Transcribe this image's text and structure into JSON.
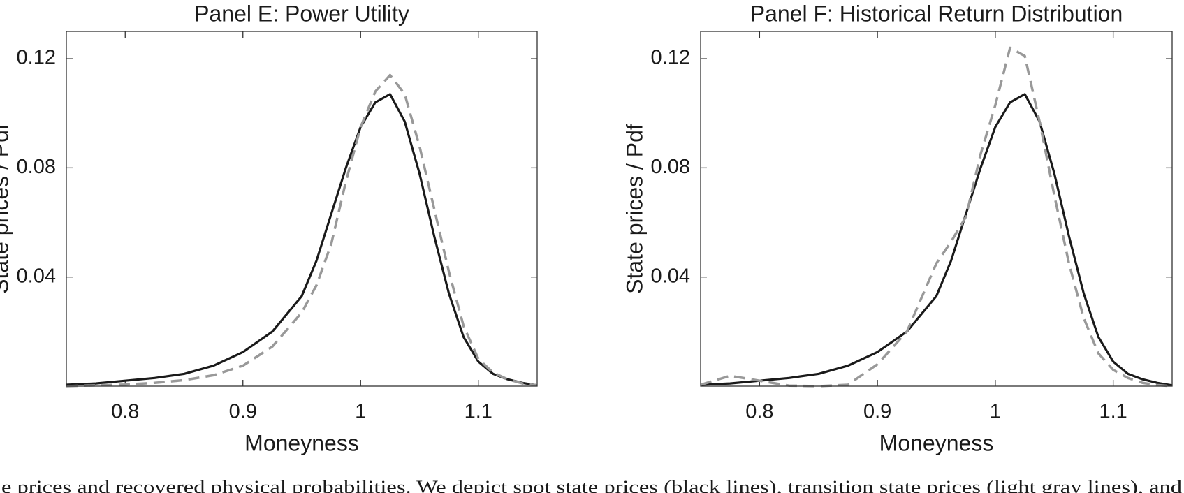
{
  "chart_data": [
    {
      "type": "line",
      "title": "Panel E: Power Utility",
      "xlabel": "Moneyness",
      "ylabel": "State prices / Pdf",
      "x": [
        0.75,
        0.775,
        0.8,
        0.825,
        0.85,
        0.875,
        0.9,
        0.925,
        0.95,
        0.9625,
        0.975,
        0.9875,
        1.0,
        1.0125,
        1.025,
        1.0375,
        1.05,
        1.0625,
        1.075,
        1.0875,
        1.1,
        1.1125,
        1.125,
        1.1375,
        1.15
      ],
      "series": [
        {
          "color": "#1a1a1a",
          "style": "solid",
          "values": [
            0.0005,
            0.001,
            0.002,
            0.003,
            0.0045,
            0.0075,
            0.0125,
            0.02,
            0.033,
            0.046,
            0.063,
            0.08,
            0.095,
            0.104,
            0.107,
            0.097,
            0.078,
            0.055,
            0.034,
            0.018,
            0.009,
            0.0045,
            0.0025,
            0.0012,
            0.0003
          ]
        },
        {
          "color": "#999999",
          "style": "dashed",
          "values": [
            0,
            0.0003,
            0.0006,
            0.0012,
            0.0022,
            0.004,
            0.0075,
            0.0145,
            0.027,
            0.037,
            0.052,
            0.075,
            0.095,
            0.108,
            0.114,
            0.107,
            0.088,
            0.065,
            0.042,
            0.022,
            0.01,
            0.005,
            0.0025,
            0.001,
            0.0003
          ]
        }
      ],
      "xlim": [
        0.75,
        1.15
      ],
      "xticks": [
        0.8,
        0.9,
        1,
        1.1
      ],
      "ylim": [
        0,
        0.13
      ],
      "yticks": [
        0.04,
        0.08,
        0.12
      ],
      "grid": false
    },
    {
      "type": "line",
      "title": "Panel F: Historical Return Distribution",
      "xlabel": "Moneyness",
      "ylabel": "State prices / Pdf",
      "x": [
        0.75,
        0.775,
        0.8,
        0.825,
        0.85,
        0.875,
        0.9,
        0.925,
        0.95,
        0.9625,
        0.975,
        0.9875,
        1.0,
        1.0125,
        1.025,
        1.0375,
        1.05,
        1.0625,
        1.075,
        1.0875,
        1.1,
        1.1125,
        1.125,
        1.1375,
        1.15
      ],
      "series": [
        {
          "color": "#1a1a1a",
          "style": "solid",
          "values": [
            0.0005,
            0.001,
            0.002,
            0.003,
            0.0045,
            0.0075,
            0.0125,
            0.02,
            0.033,
            0.046,
            0.063,
            0.08,
            0.095,
            0.104,
            0.107,
            0.097,
            0.078,
            0.055,
            0.034,
            0.018,
            0.009,
            0.0045,
            0.0025,
            0.0012,
            0.0003
          ]
        },
        {
          "color": "#999999",
          "style": "dashed",
          "values": [
            0.0005,
            0.0038,
            0.002,
            0.0002,
            0,
            0.0005,
            0.008,
            0.02,
            0.045,
            0.053,
            0.062,
            0.085,
            0.103,
            0.124,
            0.121,
            0.097,
            0.07,
            0.045,
            0.025,
            0.012,
            0.006,
            0.003,
            0.0012,
            0.0004,
            0
          ]
        }
      ],
      "xlim": [
        0.75,
        1.15
      ],
      "xticks": [
        0.8,
        0.9,
        1,
        1.1
      ],
      "ylim": [
        0,
        0.13
      ],
      "yticks": [
        0.04,
        0.08,
        0.12
      ],
      "grid": false
    }
  ],
  "caption": "e prices and recovered physical probabilities. We depict spot state prices (black lines), transition state prices (light gray lines), and"
}
